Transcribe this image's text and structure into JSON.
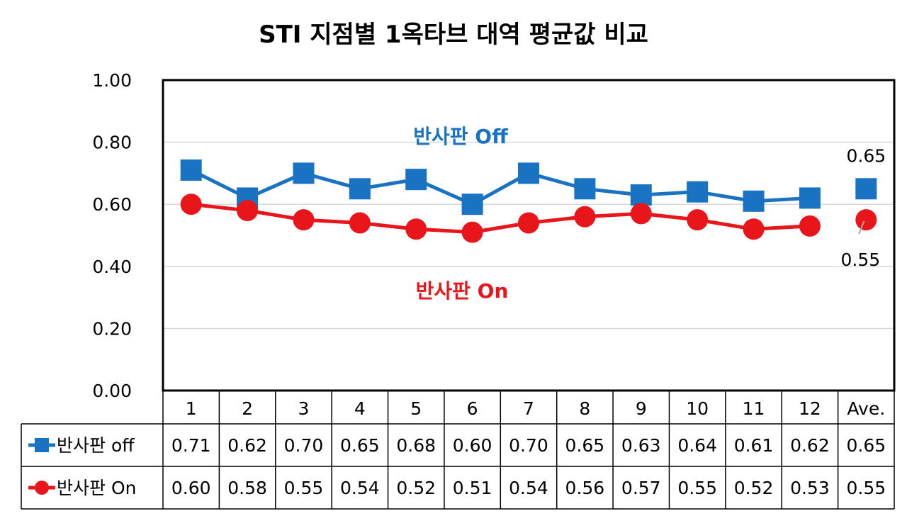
{
  "chart_data": {
    "type": "line",
    "title": "STI 지점별 1옥타브 대역 평균값 비교",
    "xlabel": "",
    "ylabel": "",
    "categories": [
      "1",
      "2",
      "3",
      "4",
      "5",
      "6",
      "7",
      "8",
      "9",
      "10",
      "11",
      "12",
      "Ave."
    ],
    "ylim": [
      0,
      1
    ],
    "yticks": [
      "0.00",
      "0.20",
      "0.40",
      "0.60",
      "0.80",
      "1.00"
    ],
    "grid": true,
    "series": [
      {
        "name": "반사판 off",
        "chart_label": "반사판 Off",
        "color": "#1a73c2",
        "marker": "square",
        "values": [
          0.71,
          0.62,
          0.7,
          0.65,
          0.68,
          0.6,
          0.7,
          0.65,
          0.63,
          0.64,
          0.61,
          0.62,
          0.65
        ],
        "value_labels": [
          "0.71",
          "0.62",
          "0.70",
          "0.65",
          "0.68",
          "0.60",
          "0.70",
          "0.65",
          "0.63",
          "0.64",
          "0.61",
          "0.62",
          "0.65"
        ],
        "average_label": "0.65"
      },
      {
        "name": "반사판 On",
        "chart_label": "반사판 On",
        "color": "#e8151b",
        "marker": "circle",
        "values": [
          0.6,
          0.58,
          0.55,
          0.54,
          0.52,
          0.51,
          0.54,
          0.56,
          0.57,
          0.55,
          0.52,
          0.53,
          0.55
        ],
        "value_labels": [
          "0.60",
          "0.58",
          "0.55",
          "0.54",
          "0.52",
          "0.51",
          "0.54",
          "0.56",
          "0.57",
          "0.55",
          "0.52",
          "0.53",
          "0.55"
        ],
        "average_label": "0.55"
      }
    ],
    "data_table": true,
    "average_category": "Ave."
  }
}
